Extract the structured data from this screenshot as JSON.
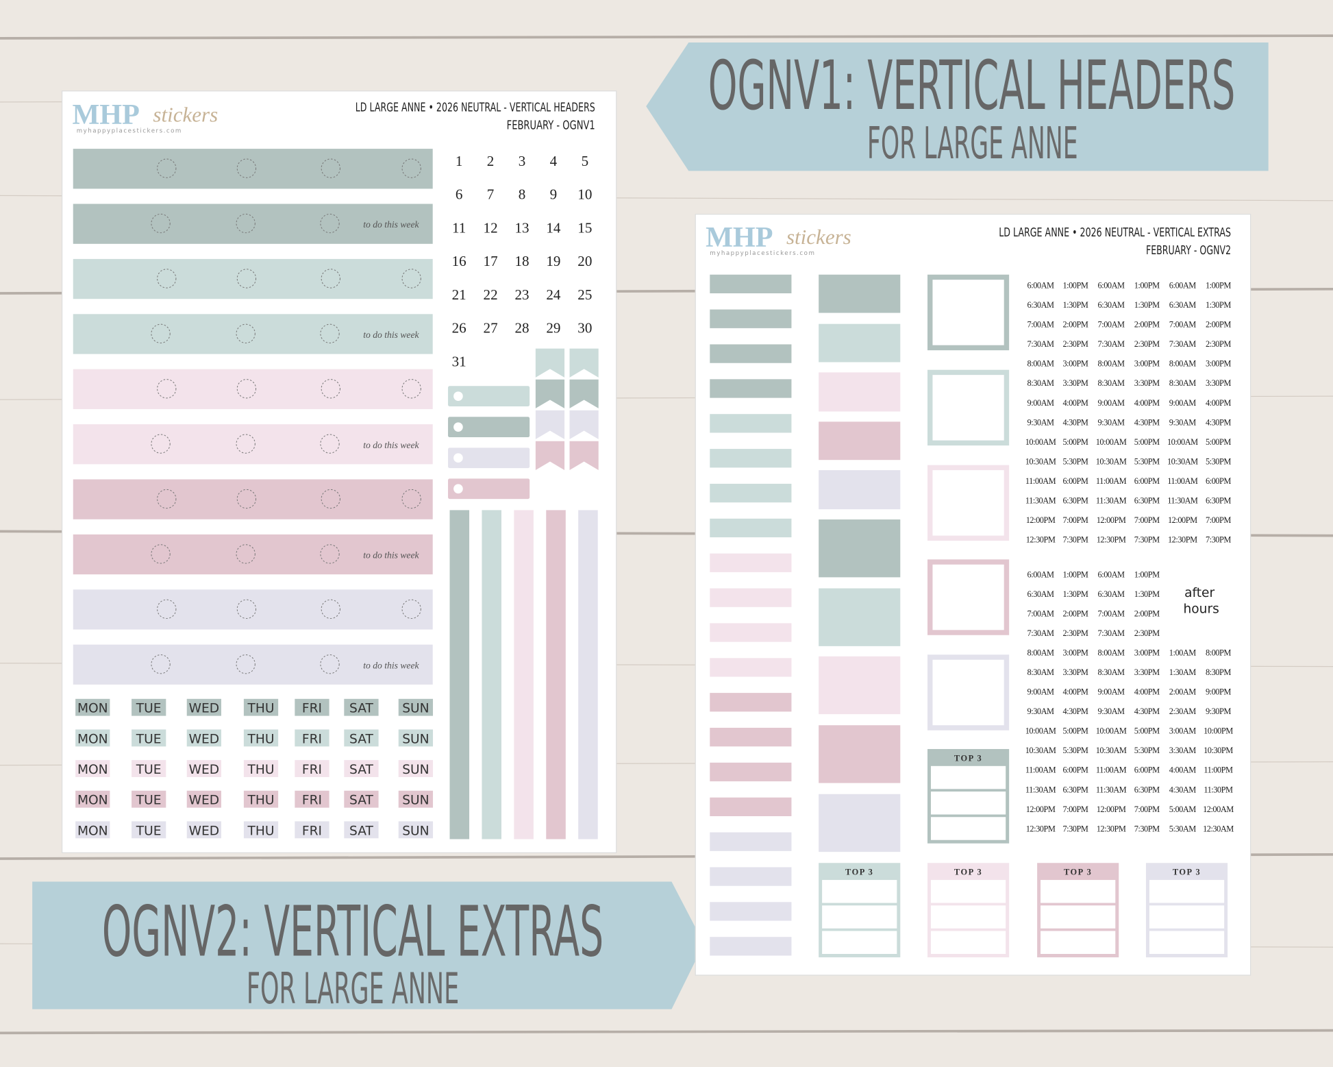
{
  "banner1": {
    "title": "OGNV1: VERTICAL HEADERS",
    "subtitle": "FOR LARGE ANNE"
  },
  "banner2": {
    "title": "OGNV2: VERTICAL EXTRAS",
    "subtitle": "FOR LARGE ANNE"
  },
  "sheet1": {
    "logo": {
      "brand": "MHP",
      "script": "stickers",
      "url": "myhappyplacestickers.com"
    },
    "header_lines": [
      "LD LARGE ANNE • 2026 NEUTRAL - VERTICAL HEADERS",
      "FEBRUARY  - OGNV1"
    ],
    "todo": "to do this week",
    "dates": [
      1,
      2,
      3,
      4,
      5,
      6,
      7,
      8,
      9,
      10,
      11,
      12,
      13,
      14,
      15,
      16,
      17,
      18,
      19,
      20,
      21,
      22,
      23,
      24,
      25,
      26,
      27,
      28,
      29,
      30,
      31
    ],
    "days": [
      "MON",
      "TUE",
      "WED",
      "THU",
      "FRI",
      "SAT",
      "SUN"
    ]
  },
  "sheet2": {
    "logo": {
      "brand": "MHP",
      "script": "stickers",
      "url": "myhappyplacestickers.com"
    },
    "header_lines": [
      "LD LARGE ANNE • 2026 NEUTRAL - VERTICAL EXTRAS",
      "FEBRUARY - OGNV2"
    ],
    "top3": "TOP 3",
    "after_hours": [
      "after",
      "hours"
    ],
    "times": {
      "am": [
        "6:00AM",
        "6:30AM",
        "7:00AM",
        "7:30AM",
        "8:00AM",
        "8:30AM",
        "9:00AM",
        "9:30AM",
        "10:00AM",
        "10:30AM",
        "11:00AM",
        "11:30AM",
        "12:00PM",
        "12:30PM"
      ],
      "pm": [
        "1:00PM",
        "1:30PM",
        "2:00PM",
        "2:30PM",
        "3:00PM",
        "3:30PM",
        "4:00PM",
        "4:30PM",
        "5:00PM",
        "5:30PM",
        "6:00PM",
        "6:30PM",
        "7:00PM",
        "7:30PM"
      ],
      "night": [
        "1:00AM",
        "1:30AM",
        "2:00AM",
        "2:30AM",
        "3:00AM",
        "3:30AM",
        "4:00AM",
        "4:30AM",
        "5:00AM",
        "5:30AM"
      ],
      "late": [
        "8:00PM",
        "8:30PM",
        "9:00PM",
        "9:30PM",
        "10:00PM",
        "10:30PM",
        "11:00PM",
        "11:30PM",
        "12:00AM",
        "12:30AM"
      ]
    }
  }
}
